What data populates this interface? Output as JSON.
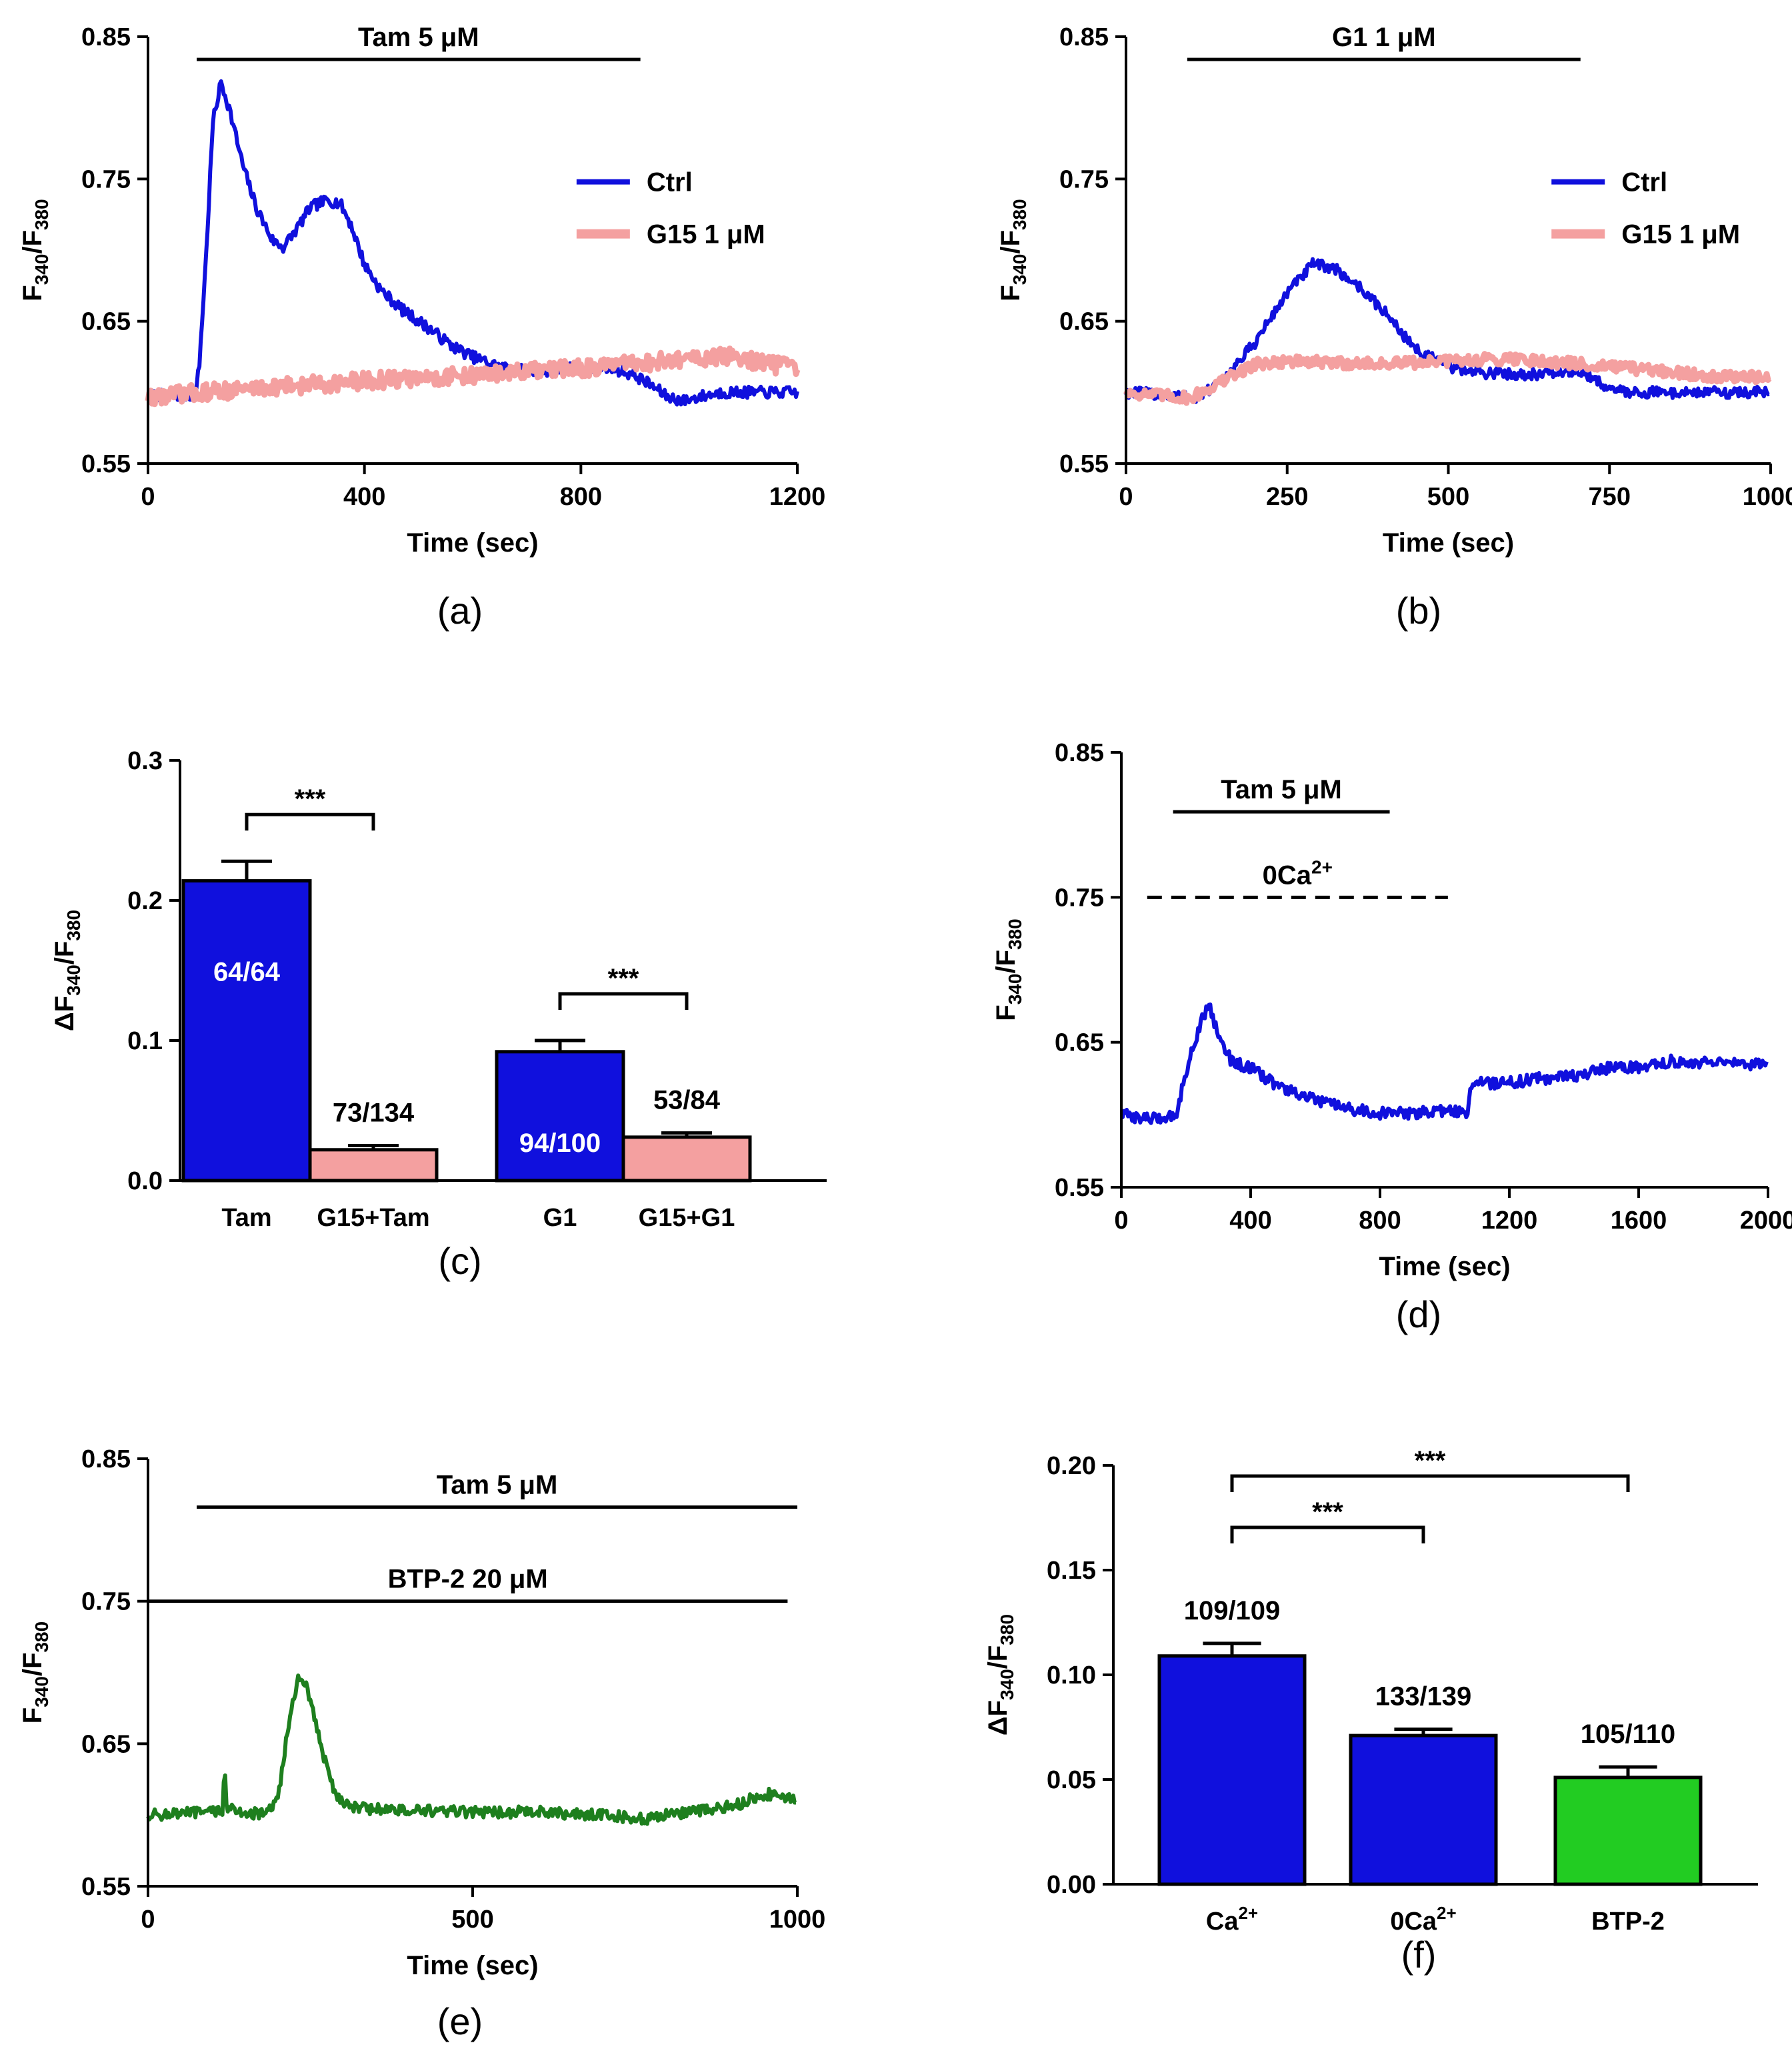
{
  "figure": {
    "panel_labels": [
      "(a)",
      "(b)",
      "(c)",
      "(d)",
      "(e)",
      "(f)"
    ],
    "colors": {
      "blue": "#1010dd",
      "pink": "#f4a0a0",
      "green": "#1e7f1e",
      "green_bar": "#22cc22",
      "black": "#000000"
    }
  },
  "chart_data": [
    {
      "panel": "(a)",
      "type": "line",
      "xlabel": "Time (sec)",
      "ylabel_main": "F",
      "ylabel_sub1": "340",
      "ylabel_sep": "/F",
      "ylabel_sub2": "380",
      "xlim": [
        0,
        1200
      ],
      "ylim": [
        0.55,
        0.85
      ],
      "xticks": [
        0,
        400,
        800,
        1200
      ],
      "xtick_labels": [
        "0",
        "400",
        "800",
        "1200"
      ],
      "yticks": [
        0.55,
        0.65,
        0.75,
        0.85
      ],
      "ytick_labels": [
        "0.55",
        "0.65",
        "0.75",
        "0.85"
      ],
      "annotations": [
        {
          "text": "Tam 5 μM",
          "x_start": 90,
          "x_end": 910,
          "y": 0.834,
          "style": "solid"
        }
      ],
      "legend": {
        "position": "right",
        "entries": [
          "Ctrl",
          "G15 1 μM"
        ]
      },
      "series": [
        {
          "name": "Ctrl",
          "color": "blue",
          "noise": 0.004,
          "points": [
            [
              0,
              0.598
            ],
            [
              88,
              0.598
            ],
            [
              95,
              0.62
            ],
            [
              108,
              0.7
            ],
            [
              120,
              0.79
            ],
            [
              135,
              0.818
            ],
            [
              150,
              0.8
            ],
            [
              175,
              0.76
            ],
            [
              200,
              0.73
            ],
            [
              230,
              0.707
            ],
            [
              250,
              0.702
            ],
            [
              275,
              0.715
            ],
            [
              300,
              0.73
            ],
            [
              330,
              0.735
            ],
            [
              355,
              0.733
            ],
            [
              375,
              0.718
            ],
            [
              400,
              0.69
            ],
            [
              430,
              0.672
            ],
            [
              470,
              0.658
            ],
            [
              520,
              0.645
            ],
            [
              560,
              0.633
            ],
            [
              600,
              0.625
            ],
            [
              650,
              0.618
            ],
            [
              700,
              0.615
            ],
            [
              750,
              0.615
            ],
            [
              800,
              0.618
            ],
            [
              850,
              0.618
            ],
            [
              900,
              0.612
            ],
            [
              930,
              0.605
            ],
            [
              960,
              0.597
            ],
            [
              990,
              0.594
            ],
            [
              1020,
              0.597
            ],
            [
              1060,
              0.6
            ],
            [
              1100,
              0.6
            ],
            [
              1150,
              0.6
            ],
            [
              1200,
              0.6
            ]
          ]
        },
        {
          "name": "G15 1 μM",
          "color": "pink",
          "noise": 0.006,
          "points": [
            [
              0,
              0.597
            ],
            [
              200,
              0.603
            ],
            [
              400,
              0.608
            ],
            [
              600,
              0.612
            ],
            [
              800,
              0.617
            ],
            [
              900,
              0.62
            ],
            [
              1000,
              0.624
            ],
            [
              1080,
              0.625
            ],
            [
              1150,
              0.62
            ],
            [
              1200,
              0.616
            ]
          ]
        }
      ]
    },
    {
      "panel": "(b)",
      "type": "line",
      "xlabel": "Time (sec)",
      "ylabel_main": "F",
      "ylabel_sub1": "340",
      "ylabel_sep": "/F",
      "ylabel_sub2": "380",
      "xlim": [
        0,
        1000
      ],
      "ylim": [
        0.55,
        0.85
      ],
      "xticks": [
        0,
        250,
        500,
        750,
        1000
      ],
      "xtick_labels": [
        "0",
        "250",
        "500",
        "750",
        "1000"
      ],
      "yticks": [
        0.55,
        0.65,
        0.75,
        0.85
      ],
      "ytick_labels": [
        "0.55",
        "0.65",
        "0.75",
        "0.85"
      ],
      "annotations": [
        {
          "text": "G1 1 μM",
          "x_start": 95,
          "x_end": 705,
          "y": 0.834,
          "style": "solid"
        }
      ],
      "legend": {
        "position": "right",
        "entries": [
          "Ctrl",
          "G15 1 μM"
        ]
      },
      "series": [
        {
          "name": "Ctrl",
          "color": "blue",
          "noise": 0.004,
          "points": [
            [
              0,
              0.6
            ],
            [
              80,
              0.598
            ],
            [
              110,
              0.596
            ],
            [
              150,
              0.608
            ],
            [
              200,
              0.635
            ],
            [
              250,
              0.67
            ],
            [
              290,
              0.69
            ],
            [
              320,
              0.688
            ],
            [
              360,
              0.675
            ],
            [
              400,
              0.657
            ],
            [
              450,
              0.63
            ],
            [
              500,
              0.618
            ],
            [
              550,
              0.614
            ],
            [
              600,
              0.613
            ],
            [
              650,
              0.613
            ],
            [
              700,
              0.615
            ],
            [
              730,
              0.608
            ],
            [
              760,
              0.601
            ],
            [
              800,
              0.6
            ],
            [
              900,
              0.6
            ],
            [
              1000,
              0.6
            ]
          ]
        },
        {
          "name": "G15 1 μM",
          "color": "pink",
          "noise": 0.004,
          "points": [
            [
              0,
              0.6
            ],
            [
              100,
              0.596
            ],
            [
              150,
              0.608
            ],
            [
              200,
              0.62
            ],
            [
              250,
              0.622
            ],
            [
              300,
              0.621
            ],
            [
              400,
              0.62
            ],
            [
              500,
              0.622
            ],
            [
              600,
              0.624
            ],
            [
              700,
              0.62
            ],
            [
              800,
              0.616
            ],
            [
              900,
              0.612
            ],
            [
              1000,
              0.61
            ]
          ]
        }
      ]
    },
    {
      "panel": "(c)",
      "type": "bar",
      "ylabel": "ΔF340/F380",
      "ylabel_main": "ΔF",
      "ylabel_sub1": "340",
      "ylabel_sep": "/F",
      "ylabel_sub2": "380",
      "ylim": [
        0,
        0.3
      ],
      "yticks": [
        0.0,
        0.1,
        0.2,
        0.3
      ],
      "ytick_labels": [
        "0.0",
        "0.1",
        "0.2",
        "0.3"
      ],
      "categories": [
        "Tam",
        "G15+Tam",
        "G1",
        "G15+G1"
      ],
      "values": [
        0.214,
        0.022,
        0.092,
        0.031
      ],
      "errors": [
        0.014,
        0.003,
        0.008,
        0.003
      ],
      "bar_colors": [
        "blue",
        "pink",
        "blue",
        "pink"
      ],
      "bar_labels": [
        "64/64",
        "73/134",
        "94/100",
        "53/84"
      ],
      "bar_label_inside": [
        true,
        false,
        true,
        false
      ],
      "significance": [
        {
          "from": 0,
          "to": 1,
          "text": "***"
        },
        {
          "from": 2,
          "to": 3,
          "text": "***"
        }
      ]
    },
    {
      "panel": "(d)",
      "type": "line",
      "xlabel": "Time (sec)",
      "ylabel_main": "F",
      "ylabel_sub1": "340",
      "ylabel_sep": "/F",
      "ylabel_sub2": "380",
      "xlim": [
        0,
        2000
      ],
      "ylim": [
        0.55,
        0.85
      ],
      "xticks": [
        0,
        400,
        800,
        1200,
        1600,
        2000
      ],
      "xtick_labels": [
        "0",
        "400",
        "800",
        "1200",
        "1600",
        "2000"
      ],
      "yticks": [
        0.55,
        0.65,
        0.75,
        0.85
      ],
      "ytick_labels": [
        "0.55",
        "0.65",
        "0.75",
        "0.85"
      ],
      "annotations": [
        {
          "text": "Tam 5 μM",
          "x_start": 160,
          "x_end": 830,
          "y": 0.809,
          "style": "solid"
        },
        {
          "text": "0Ca",
          "sup": "2+",
          "x_start": 80,
          "x_end": 1010,
          "y": 0.75,
          "style": "dashed"
        }
      ],
      "series": [
        {
          "name": "trace",
          "color": "blue",
          "noise": 0.004,
          "points": [
            [
              0,
              0.6
            ],
            [
              100,
              0.597
            ],
            [
              170,
              0.6
            ],
            [
              200,
              0.63
            ],
            [
              240,
              0.66
            ],
            [
              270,
              0.677
            ],
            [
              300,
              0.655
            ],
            [
              340,
              0.637
            ],
            [
              400,
              0.632
            ],
            [
              500,
              0.618
            ],
            [
              600,
              0.61
            ],
            [
              700,
              0.604
            ],
            [
              800,
              0.601
            ],
            [
              900,
              0.601
            ],
            [
              1000,
              0.603
            ],
            [
              1070,
              0.601
            ],
            [
              1080,
              0.622
            ],
            [
              1200,
              0.622
            ],
            [
              1300,
              0.625
            ],
            [
              1400,
              0.627
            ],
            [
              1500,
              0.632
            ],
            [
              1600,
              0.633
            ],
            [
              1700,
              0.637
            ],
            [
              1800,
              0.636
            ],
            [
              1900,
              0.635
            ],
            [
              2000,
              0.634
            ]
          ]
        }
      ]
    },
    {
      "panel": "(e)",
      "type": "line",
      "xlabel": "Time (sec)",
      "ylabel_main": "F",
      "ylabel_sub1": "340",
      "ylabel_sep": "/F",
      "ylabel_sub2": "380",
      "xlim": [
        0,
        1000
      ],
      "ylim": [
        0.55,
        0.85
      ],
      "xticks": [
        0,
        500,
        1000
      ],
      "xtick_labels": [
        "0",
        "500",
        "1000"
      ],
      "yticks": [
        0.55,
        0.65,
        0.75,
        0.85
      ],
      "ytick_labels": [
        "0.55",
        "0.65",
        "0.75",
        "0.85"
      ],
      "annotations": [
        {
          "text": "Tam 5 μM",
          "x_start": 75,
          "x_end": 1000,
          "y": 0.816,
          "style": "solid"
        },
        {
          "text": "BTP-2 20 μM",
          "x_start": 0,
          "x_end": 985,
          "y": 0.75,
          "style": "solid"
        }
      ],
      "series": [
        {
          "name": "trace",
          "color": "green",
          "noise": 0.004,
          "points": [
            [
              0,
              0.6
            ],
            [
              100,
              0.602
            ],
            [
              115,
              0.604
            ],
            [
              118,
              0.636
            ],
            [
              121,
              0.604
            ],
            [
              180,
              0.6
            ],
            [
              200,
              0.61
            ],
            [
              215,
              0.66
            ],
            [
              230,
              0.695
            ],
            [
              245,
              0.69
            ],
            [
              265,
              0.65
            ],
            [
              290,
              0.613
            ],
            [
              320,
              0.605
            ],
            [
              400,
              0.603
            ],
            [
              500,
              0.602
            ],
            [
              600,
              0.602
            ],
            [
              700,
              0.6
            ],
            [
              770,
              0.597
            ],
            [
              800,
              0.6
            ],
            [
              900,
              0.606
            ],
            [
              950,
              0.615
            ],
            [
              1000,
              0.612
            ]
          ]
        }
      ]
    },
    {
      "panel": "(f)",
      "type": "bar",
      "ylabel": "ΔF340/F380",
      "ylabel_main": "ΔF",
      "ylabel_sub1": "340",
      "ylabel_sep": "/F",
      "ylabel_sub2": "380",
      "ylim": [
        0,
        0.2
      ],
      "yticks": [
        0.0,
        0.05,
        0.1,
        0.15,
        0.2
      ],
      "ytick_labels": [
        "0.00",
        "0.05",
        "0.10",
        "0.15",
        "0.20"
      ],
      "categories": [
        "Ca",
        "0Ca",
        "BTP-2"
      ],
      "category_sups": [
        "2+",
        "2+",
        ""
      ],
      "values": [
        0.109,
        0.071,
        0.051
      ],
      "errors": [
        0.006,
        0.003,
        0.005
      ],
      "bar_colors": [
        "blue",
        "blue",
        "green_bar"
      ],
      "bar_labels": [
        "109/109",
        "133/139",
        "105/110"
      ],
      "bar_label_inside": [
        false,
        false,
        false
      ],
      "significance": [
        {
          "from": 0,
          "to": 1,
          "text": "***"
        },
        {
          "from": 0,
          "to": 2,
          "text": "***"
        }
      ]
    }
  ]
}
